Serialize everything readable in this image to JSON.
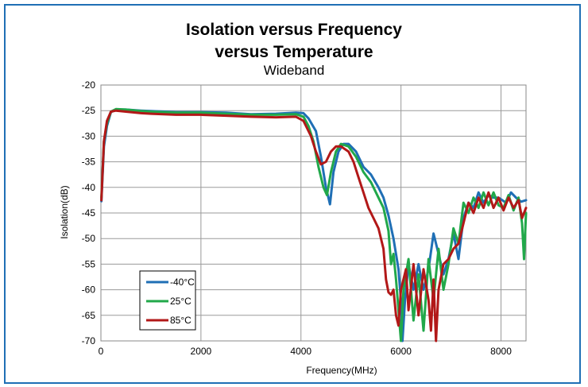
{
  "chart_data": {
    "type": "line",
    "title": "Isolation versus Frequency",
    "title_line2": "versus Temperature",
    "subtitle": "Wideband",
    "xlabel": "Frequency(MHz)",
    "ylabel": "Isolation(dB)",
    "xlim": [
      0,
      8500
    ],
    "ylim": [
      -70,
      -20
    ],
    "x_ticks": [
      0,
      2000,
      4000,
      6000,
      8000
    ],
    "y_ticks": [
      -20,
      -25,
      -30,
      -35,
      -40,
      -45,
      -50,
      -55,
      -60,
      -65,
      -70
    ],
    "grid": true,
    "legend_position": "bottom-left",
    "series": [
      {
        "name": "-40°C",
        "color": "#1f6fb5",
        "points": [
          [
            10,
            -42.7
          ],
          [
            60,
            -32
          ],
          [
            120,
            -28
          ],
          [
            200,
            -25.3
          ],
          [
            300,
            -24.8
          ],
          [
            500,
            -24.8
          ],
          [
            800,
            -25
          ],
          [
            1000,
            -25.1
          ],
          [
            1500,
            -25.3
          ],
          [
            2000,
            -25.3
          ],
          [
            2500,
            -25.4
          ],
          [
            3000,
            -25.7
          ],
          [
            3500,
            -25.6
          ],
          [
            3900,
            -25.4
          ],
          [
            4050,
            -25.5
          ],
          [
            4150,
            -26.5
          ],
          [
            4300,
            -29
          ],
          [
            4400,
            -34
          ],
          [
            4500,
            -40
          ],
          [
            4580,
            -43.3
          ],
          [
            4650,
            -37
          ],
          [
            4750,
            -33
          ],
          [
            4850,
            -31.5
          ],
          [
            4950,
            -31.5
          ],
          [
            5100,
            -33
          ],
          [
            5250,
            -36
          ],
          [
            5400,
            -37.5
          ],
          [
            5550,
            -40
          ],
          [
            5650,
            -42
          ],
          [
            5750,
            -45.5
          ],
          [
            5850,
            -50
          ],
          [
            5950,
            -56
          ],
          [
            6000,
            -62
          ],
          [
            6030,
            -70
          ],
          [
            6080,
            -62
          ],
          [
            6150,
            -55
          ],
          [
            6250,
            -60
          ],
          [
            6350,
            -55
          ],
          [
            6450,
            -60
          ],
          [
            6550,
            -56
          ],
          [
            6650,
            -49
          ],
          [
            6750,
            -53
          ],
          [
            6850,
            -57
          ],
          [
            6950,
            -54
          ],
          [
            7050,
            -49
          ],
          [
            7150,
            -54
          ],
          [
            7250,
            -46
          ],
          [
            7350,
            -43
          ],
          [
            7450,
            -44
          ],
          [
            7550,
            -41
          ],
          [
            7650,
            -43
          ],
          [
            7750,
            -41.5
          ],
          [
            7850,
            -42
          ],
          [
            7950,
            -42
          ],
          [
            8100,
            -43
          ],
          [
            8200,
            -41
          ],
          [
            8300,
            -42
          ],
          [
            8400,
            -42.8
          ],
          [
            8500,
            -42.5
          ]
        ]
      },
      {
        "name": "25°C",
        "color": "#21a84a",
        "points": [
          [
            10,
            -42
          ],
          [
            60,
            -31
          ],
          [
            120,
            -27.5
          ],
          [
            200,
            -25.2
          ],
          [
            300,
            -24.7
          ],
          [
            500,
            -24.8
          ],
          [
            800,
            -25.1
          ],
          [
            1000,
            -25.2
          ],
          [
            1500,
            -25.4
          ],
          [
            2000,
            -25.4
          ],
          [
            2500,
            -25.6
          ],
          [
            3000,
            -25.8
          ],
          [
            3500,
            -25.8
          ],
          [
            3900,
            -25.7
          ],
          [
            4050,
            -26.2
          ],
          [
            4150,
            -28
          ],
          [
            4250,
            -31
          ],
          [
            4350,
            -36
          ],
          [
            4450,
            -40
          ],
          [
            4520,
            -41.5
          ],
          [
            4600,
            -37
          ],
          [
            4700,
            -33
          ],
          [
            4800,
            -31.5
          ],
          [
            4950,
            -32
          ],
          [
            5100,
            -34
          ],
          [
            5250,
            -37
          ],
          [
            5400,
            -39
          ],
          [
            5550,
            -42
          ],
          [
            5650,
            -44
          ],
          [
            5750,
            -48.5
          ],
          [
            5800,
            -55
          ],
          [
            5850,
            -53
          ],
          [
            5900,
            -58
          ],
          [
            5950,
            -64
          ],
          [
            6000,
            -70
          ],
          [
            6050,
            -60
          ],
          [
            6150,
            -54
          ],
          [
            6250,
            -66
          ],
          [
            6350,
            -57
          ],
          [
            6450,
            -68
          ],
          [
            6550,
            -54
          ],
          [
            6650,
            -62
          ],
          [
            6750,
            -52
          ],
          [
            6850,
            -60
          ],
          [
            6950,
            -55
          ],
          [
            7050,
            -48
          ],
          [
            7150,
            -51
          ],
          [
            7250,
            -43
          ],
          [
            7350,
            -45
          ],
          [
            7450,
            -42
          ],
          [
            7550,
            -44
          ],
          [
            7650,
            -41
          ],
          [
            7750,
            -43.5
          ],
          [
            7850,
            -41
          ],
          [
            7950,
            -43.5
          ],
          [
            8050,
            -44
          ],
          [
            8150,
            -41.5
          ],
          [
            8250,
            -44.5
          ],
          [
            8350,
            -42
          ],
          [
            8420,
            -47
          ],
          [
            8460,
            -54
          ],
          [
            8500,
            -45
          ]
        ]
      },
      {
        "name": "85°C",
        "color": "#b21818",
        "points": [
          [
            10,
            -42.5
          ],
          [
            60,
            -31
          ],
          [
            120,
            -27
          ],
          [
            200,
            -25.2
          ],
          [
            300,
            -25
          ],
          [
            500,
            -25.2
          ],
          [
            800,
            -25.5
          ],
          [
            1000,
            -25.6
          ],
          [
            1500,
            -25.8
          ],
          [
            2000,
            -25.8
          ],
          [
            2500,
            -26
          ],
          [
            3000,
            -26.2
          ],
          [
            3500,
            -26.3
          ],
          [
            3900,
            -26.2
          ],
          [
            4050,
            -27
          ],
          [
            4200,
            -30
          ],
          [
            4300,
            -33
          ],
          [
            4400,
            -35.5
          ],
          [
            4500,
            -35
          ],
          [
            4600,
            -33
          ],
          [
            4700,
            -32
          ],
          [
            4800,
            -32
          ],
          [
            4950,
            -33
          ],
          [
            5050,
            -35
          ],
          [
            5150,
            -38
          ],
          [
            5250,
            -41
          ],
          [
            5350,
            -44
          ],
          [
            5450,
            -46
          ],
          [
            5550,
            -48
          ],
          [
            5650,
            -52
          ],
          [
            5700,
            -58
          ],
          [
            5750,
            -60.5
          ],
          [
            5800,
            -61
          ],
          [
            5850,
            -60
          ],
          [
            5900,
            -65
          ],
          [
            5950,
            -67
          ],
          [
            6000,
            -60
          ],
          [
            6100,
            -56
          ],
          [
            6150,
            -64
          ],
          [
            6250,
            -55
          ],
          [
            6350,
            -65
          ],
          [
            6450,
            -56
          ],
          [
            6550,
            -62
          ],
          [
            6600,
            -68
          ],
          [
            6650,
            -58
          ],
          [
            6700,
            -70
          ],
          [
            6750,
            -60
          ],
          [
            6850,
            -55
          ],
          [
            6950,
            -54
          ],
          [
            7050,
            -52
          ],
          [
            7150,
            -51
          ],
          [
            7250,
            -47
          ],
          [
            7350,
            -43
          ],
          [
            7450,
            -45
          ],
          [
            7550,
            -42
          ],
          [
            7650,
            -44
          ],
          [
            7750,
            -41
          ],
          [
            7850,
            -44
          ],
          [
            7950,
            -42
          ],
          [
            8050,
            -44.5
          ],
          [
            8150,
            -42
          ],
          [
            8250,
            -44
          ],
          [
            8350,
            -42.5
          ],
          [
            8420,
            -46
          ],
          [
            8500,
            -44
          ]
        ]
      }
    ]
  }
}
